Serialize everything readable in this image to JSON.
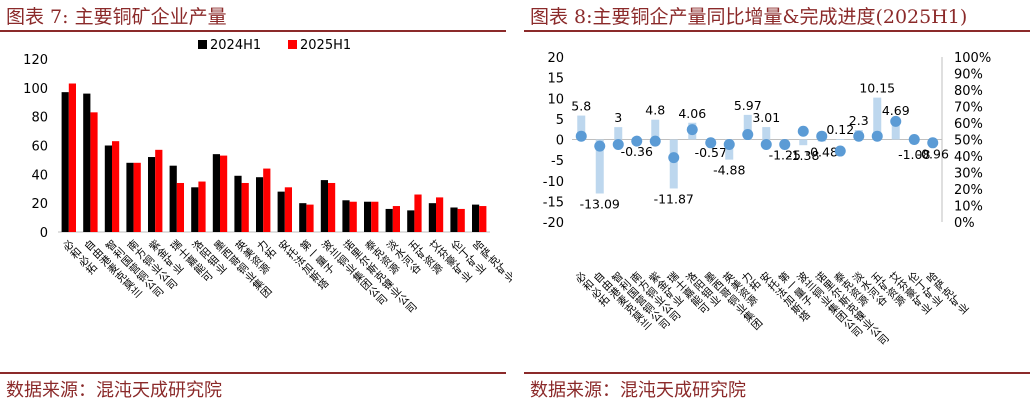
{
  "left": {
    "title": "图表 7:  主要铜矿企业产量",
    "source": "数据来源：混沌天成研究院"
  },
  "right": {
    "title": "图表 8:主要铜企产量同比增量&完成进度(2025H1)",
    "source": "数据来源：混沌天成研究院"
  },
  "colors": {
    "title": "#8b2a2a",
    "black_bar": "#000000",
    "red_bar": "#ff0000",
    "bar_light": "#bdd7ee",
    "dot": "#5b9bd5"
  },
  "chart_data": [
    {
      "type": "bar",
      "categories": [
        "必和必拓",
        "自由港麦克莫兰",
        "智利国营铜公司",
        "南方铜业公司",
        "紫金矿业",
        "瑞士嘉能可",
        "洛阳钼业",
        "墨西哥铜业集团",
        "英美资源",
        "力拓",
        "安托法加斯塔",
        "第一量子",
        "波兰铜业集团公司",
        "诺里尔斯克镍业公司",
        "泰克资源",
        "淡水河谷",
        "五矿资源",
        "艾芬豪矿业",
        "伦丁矿业",
        "哈萨克矿业"
      ],
      "series": [
        {
          "name": "2024H1",
          "values": [
            97,
            96,
            60,
            48,
            52,
            46,
            31,
            54,
            39,
            38,
            28,
            20,
            36,
            22,
            21,
            16,
            15,
            20,
            17,
            19
          ]
        },
        {
          "name": "2025H1",
          "values": [
            103,
            83,
            63,
            48,
            57,
            34,
            35,
            53,
            34,
            44,
            31,
            19,
            34,
            21,
            21,
            18,
            26,
            24,
            16,
            18
          ]
        }
      ],
      "xlabel": "",
      "ylabel": "",
      "ylim": [
        0,
        120
      ],
      "yticks": [
        "0",
        "20",
        "40",
        "60",
        "80",
        "100",
        "120"
      ],
      "legend": "top-center",
      "grid": false
    },
    {
      "type": "bar",
      "categories": [
        "必和必拓",
        "自由港麦克莫兰",
        "智利国营铜公司",
        "南方铜业公司",
        "紫金矿业",
        "瑞士嘉能可",
        "洛阳钼业",
        "墨西哥铜业集团",
        "英美资源",
        "力拓",
        "安托法加斯塔",
        "第一量子",
        "波兰铜业集团公司",
        "诺里尔斯克镍业公司",
        "泰克资源",
        "淡水河谷",
        "五矿资源",
        "艾芬豪矿业",
        "伦丁矿业",
        "哈萨克矿业"
      ],
      "bar_values": [
        5.8,
        -13.09,
        3,
        -0.36,
        4.8,
        -11.87,
        4.06,
        -0.57,
        -4.88,
        5.97,
        3.01,
        -1.25,
        -1.38,
        -0.48,
        0.12,
        2.3,
        10.15,
        4.69,
        -1.08,
        -0.96
      ],
      "bar_labels": [
        "5.8",
        "-13.09",
        "3",
        "-0.36",
        "4.8",
        "-11.87",
        "4.06",
        "-0.57",
        "-4.88",
        "5.97",
        "3.01",
        "-1.25",
        "-1.38",
        "-0.48",
        "0.12",
        "2.3",
        "10.15",
        "4.69",
        "-1.08",
        "-0.96"
      ],
      "completion_pct": [
        52,
        46,
        47,
        49,
        49,
        39,
        56,
        48,
        47,
        53,
        47,
        47,
        55,
        52,
        43,
        52,
        52,
        61,
        50,
        48
      ],
      "ylim": [
        -20,
        20
      ],
      "yticks": [
        "-20",
        "-15",
        "-10",
        "-5",
        "0",
        "5",
        "10",
        "15",
        "20"
      ],
      "y2lim": [
        0,
        100
      ],
      "y2ticks": [
        "0%",
        "10%",
        "20%",
        "30%",
        "40%",
        "50%",
        "60%",
        "70%",
        "80%",
        "90%",
        "100%"
      ],
      "grid": false
    }
  ]
}
